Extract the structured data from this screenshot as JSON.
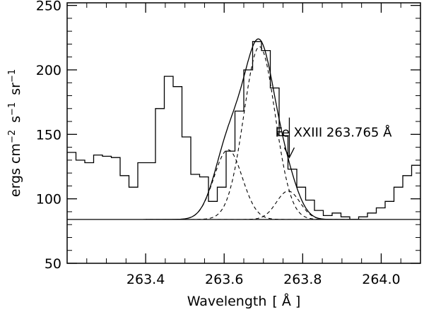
{
  "chart_data": {
    "type": "line",
    "title": "",
    "xlabel": "Wavelength",
    "xlabel_unit": "[ Å ]",
    "ylabel": {
      "main": "ergs cm",
      "exp1": "−2",
      "s": "s",
      "exp2": "−1",
      "sr": "sr",
      "exp3": "−1"
    },
    "xlim": [
      263.2,
      264.1
    ],
    "ylim": [
      50,
      252
    ],
    "xticks": [
      {
        "value": 263.4,
        "label": "263.4"
      },
      {
        "value": 263.6,
        "label": "263.6"
      },
      {
        "value": 263.8,
        "label": "263.8"
      },
      {
        "value": 264.0,
        "label": "264.0"
      }
    ],
    "yticks": [
      {
        "value": 50,
        "label": "50"
      },
      {
        "value": 100,
        "label": "100"
      },
      {
        "value": 150,
        "label": "150"
      },
      {
        "value": 200,
        "label": "200"
      },
      {
        "value": 250,
        "label": "250"
      }
    ],
    "series": [
      {
        "style": "histogram",
        "bin_width": 0.0225,
        "bin_start": 263.2,
        "values": [
          136,
          130,
          128,
          134,
          133,
          132,
          118,
          109,
          128,
          128,
          170,
          195,
          187,
          148,
          119,
          117,
          98,
          109,
          137,
          168,
          200,
          222,
          215,
          186,
          149,
          123,
          109,
          99,
          91,
          87,
          89,
          86,
          84,
          86,
          89,
          93,
          98,
          109,
          118,
          126
        ]
      },
      {
        "style": "solid",
        "baseline": 84,
        "components": [
          {
            "center": 263.61,
            "amplitude": 54,
            "width": 0.036
          },
          {
            "center": 263.69,
            "amplitude": 134,
            "width": 0.04
          },
          {
            "center": 263.763,
            "amplitude": 22,
            "width": 0.03
          }
        ]
      }
    ],
    "annotations": [
      {
        "text": "Fe XXIII 263.765 Å",
        "x": 263.766,
        "arrow_from_y": 163,
        "arrow_to_y": 132
      }
    ]
  }
}
